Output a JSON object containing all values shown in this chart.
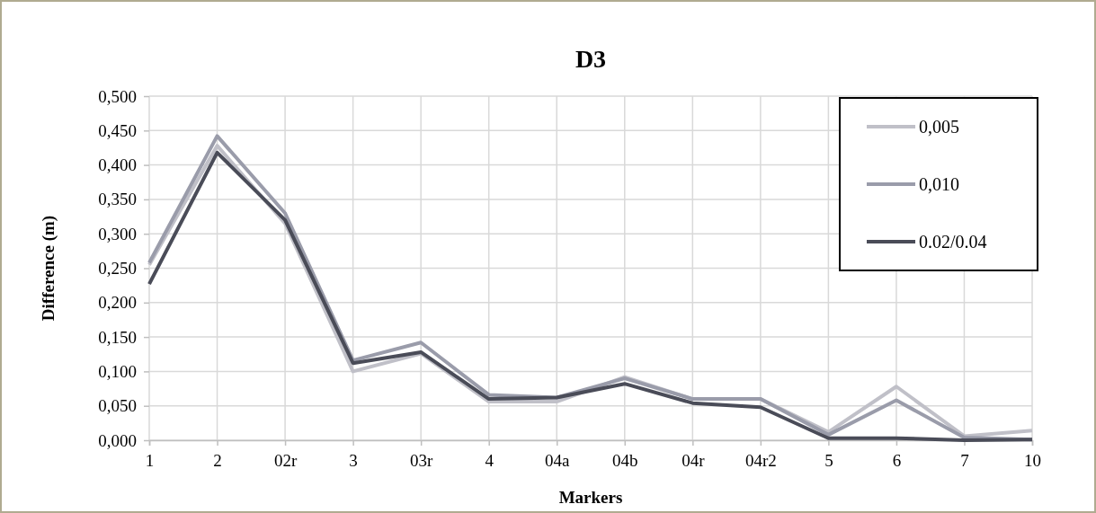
{
  "chart_data": {
    "type": "line",
    "title": "D3",
    "xlabel": "Markers",
    "ylabel": "Difference (m)",
    "categories": [
      "1",
      "2",
      "02r",
      "3",
      "03r",
      "4",
      "04a",
      "04b",
      "04r",
      "04r2",
      "5",
      "6",
      "7",
      "10"
    ],
    "series": [
      {
        "name": "0,005",
        "color": "#c0c0c8",
        "values": [
          0.255,
          0.428,
          0.315,
          0.1,
          0.126,
          0.056,
          0.056,
          0.092,
          0.06,
          0.06,
          0.012,
          0.078,
          0.006,
          0.014
        ]
      },
      {
        "name": "0,010",
        "color": "#9a9caa",
        "values": [
          0.258,
          0.442,
          0.33,
          0.116,
          0.142,
          0.066,
          0.062,
          0.09,
          0.06,
          0.06,
          0.008,
          0.058,
          0.004,
          0.001
        ]
      },
      {
        "name": "0.02/0.04",
        "color": "#4a4c58",
        "values": [
          0.227,
          0.418,
          0.32,
          0.112,
          0.128,
          0.06,
          0.062,
          0.082,
          0.054,
          0.048,
          0.003,
          0.003,
          0.0,
          0.001
        ]
      }
    ],
    "ylim": [
      0,
      0.5
    ],
    "yticks": [
      {
        "value": 0,
        "label": "0,000"
      },
      {
        "value": 0.05,
        "label": "0,050"
      },
      {
        "value": 0.1,
        "label": "0,100"
      },
      {
        "value": 0.15,
        "label": "0,150"
      },
      {
        "value": 0.2,
        "label": "0,200"
      },
      {
        "value": 0.25,
        "label": "0,250"
      },
      {
        "value": 0.3,
        "label": "0,300"
      },
      {
        "value": 0.35,
        "label": "0,350"
      },
      {
        "value": 0.4,
        "label": "0,400"
      },
      {
        "value": 0.45,
        "label": "0,450"
      },
      {
        "value": 0.5,
        "label": "0,500"
      }
    ],
    "grid": true,
    "legend": "top right",
    "marker": "none",
    "line_style": "solid"
  }
}
